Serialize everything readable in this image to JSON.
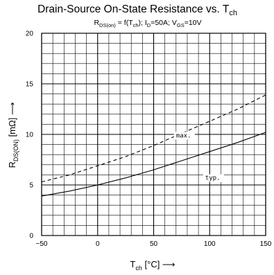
{
  "chart_data": {
    "type": "line",
    "title": {
      "main": "Drain-Source On-State Resistance vs. T",
      "main_sub": "ch"
    },
    "subtitle": {
      "p1": "R",
      "p1_sub": "DS(on)",
      "p2": " = f(T",
      "p2_sub": "ch",
      "p3": "); I",
      "p3_sub": "D",
      "p4": "=50A; V",
      "p4_sub": "GS",
      "p5": "=10V"
    },
    "xlabel": {
      "main": "T",
      "sub": "ch",
      "rest": " [°C]  ⟶"
    },
    "ylabel": {
      "main": "R",
      "sub": "DS(ON)",
      "rest": " [mΩ]  ⟶"
    },
    "xlim": [
      -50,
      150
    ],
    "ylim": [
      0,
      20
    ],
    "x_ticks": [
      "−50",
      "0",
      "50",
      "100",
      "150"
    ],
    "x_tick_values": [
      -50,
      0,
      50,
      100,
      150
    ],
    "y_ticks": [
      "0",
      "5",
      "10",
      "15",
      "20"
    ],
    "y_tick_values": [
      0,
      5,
      10,
      15,
      20
    ],
    "grid": true,
    "series": [
      {
        "name": "typ.",
        "style": "solid",
        "x": [
          -50,
          -25,
          0,
          25,
          50,
          75,
          100,
          125,
          150
        ],
        "y": [
          3.9,
          4.4,
          5.0,
          5.7,
          6.5,
          7.4,
          8.3,
          9.2,
          10.2
        ]
      },
      {
        "name": "max.",
        "style": "dashed",
        "x": [
          -50,
          -25,
          0,
          25,
          50,
          75,
          100,
          125,
          150
        ],
        "y": [
          5.3,
          6.0,
          6.9,
          7.8,
          8.9,
          10.1,
          11.3,
          12.5,
          13.9
        ]
      }
    ],
    "annotations": [
      {
        "text": "max.",
        "x": 70,
        "y": 9.7
      },
      {
        "text": "typ.",
        "x": 96,
        "y": 5.5
      }
    ]
  }
}
